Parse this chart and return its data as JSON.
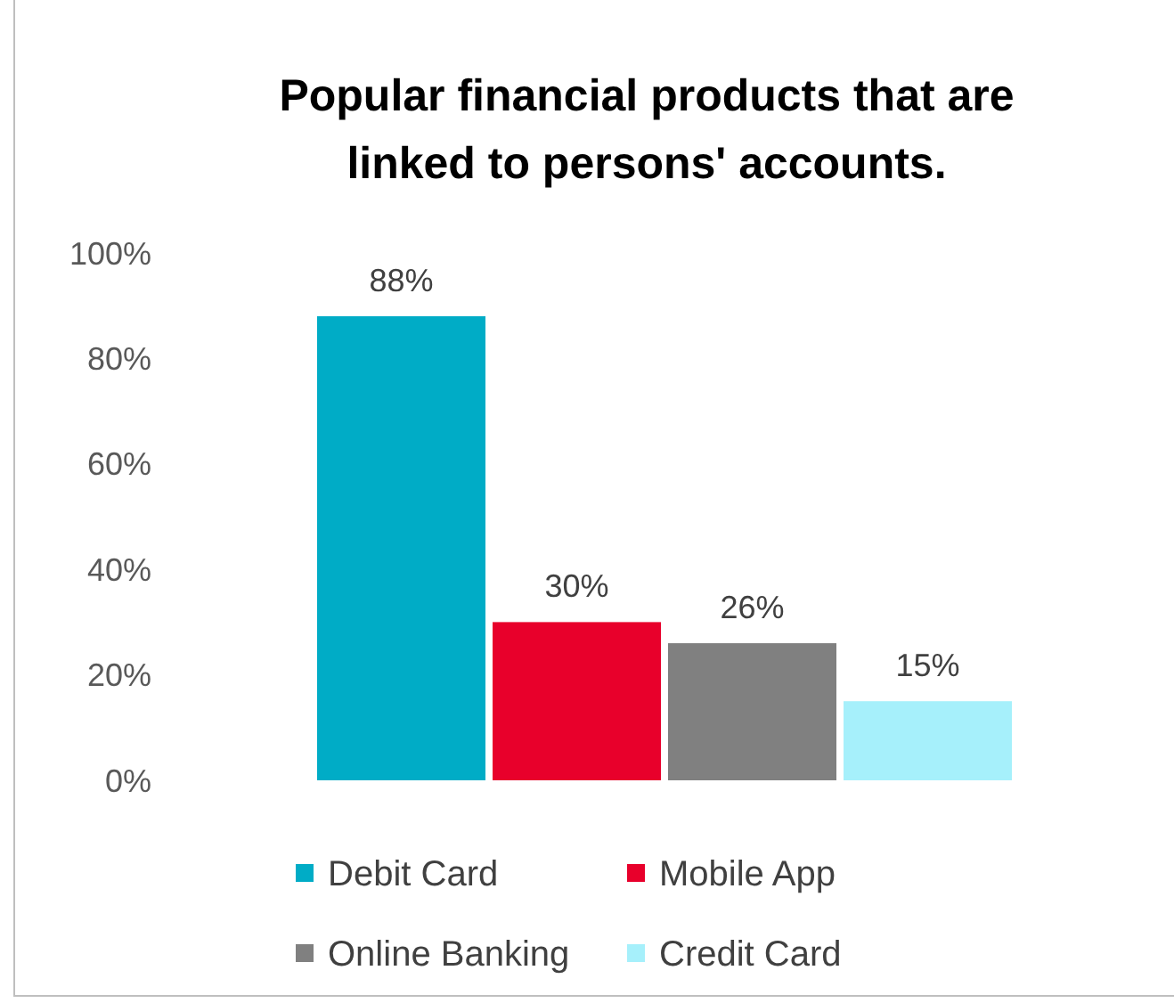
{
  "chart_data": {
    "type": "bar",
    "title": "Popular financial products that are linked to persons' accounts.",
    "categories": [
      null
    ],
    "series": [
      {
        "name": "Debit Card",
        "color": "#00acc6",
        "values": [
          88
        ],
        "value_labels": [
          "88%"
        ]
      },
      {
        "name": "Mobile App",
        "color": "#e8002b",
        "values": [
          30
        ],
        "value_labels": [
          "30%"
        ]
      },
      {
        "name": "Online Banking",
        "color": "#808080",
        "values": [
          26
        ],
        "value_labels": [
          "26%"
        ]
      },
      {
        "name": "Credit Card",
        "color": "#a6f0fb",
        "values": [
          15
        ],
        "value_labels": [
          "15%"
        ]
      }
    ],
    "ylim": [
      0,
      100
    ],
    "yticks": [
      {
        "value": 0,
        "label": "0%"
      },
      {
        "value": 20,
        "label": "20%"
      },
      {
        "value": 40,
        "label": "40%"
      },
      {
        "value": 60,
        "label": "60%"
      },
      {
        "value": 80,
        "label": "80%"
      },
      {
        "value": 100,
        "label": "100%"
      }
    ],
    "grid": false,
    "legend": "bottom"
  }
}
